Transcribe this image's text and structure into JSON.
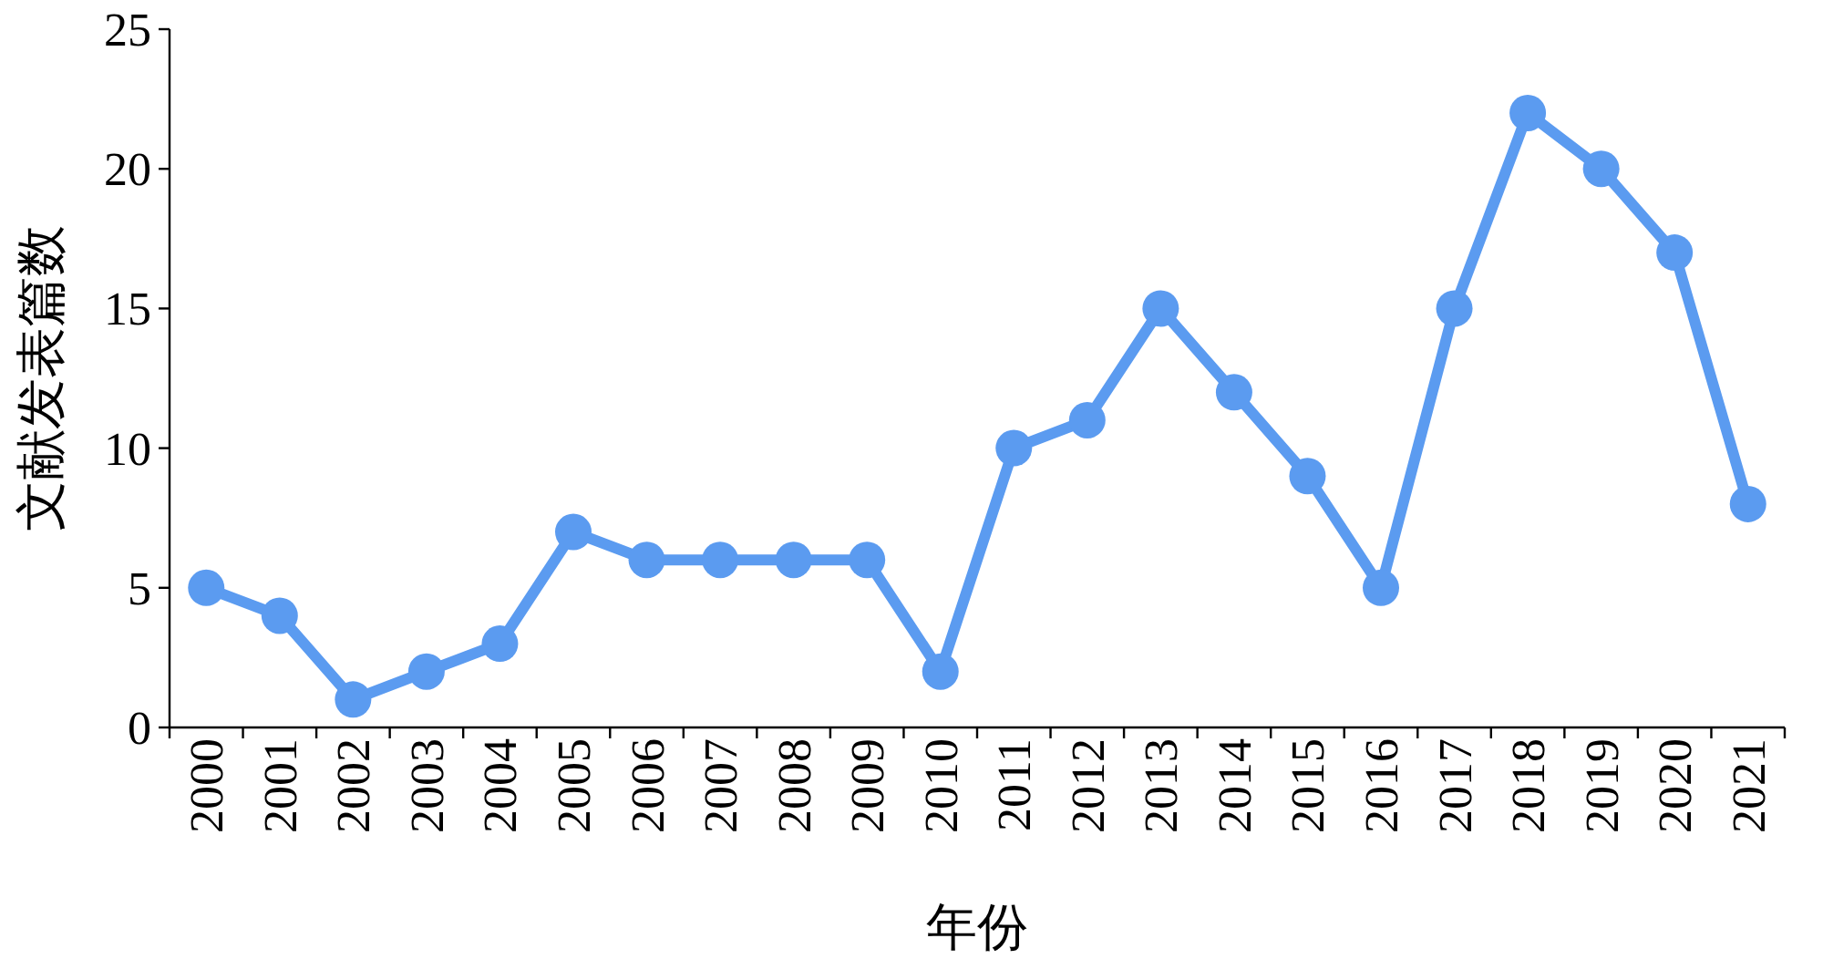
{
  "chart_data": {
    "type": "line",
    "xlabel": "年份",
    "ylabel": "文献发表篇数",
    "categories": [
      "2000",
      "2001",
      "2002",
      "2003",
      "2004",
      "2005",
      "2006",
      "2007",
      "2008",
      "2009",
      "2010",
      "2011",
      "2012",
      "2013",
      "2014",
      "2015",
      "2016",
      "2017",
      "2018",
      "2019",
      "2020",
      "2021"
    ],
    "values": [
      5,
      4,
      1,
      2,
      3,
      7,
      6,
      6,
      6,
      6,
      2,
      10,
      11,
      15,
      12,
      9,
      5,
      15,
      22,
      20,
      17,
      8
    ],
    "color": "#5b9bf0",
    "ylim": [
      0,
      25
    ],
    "yticks": [
      0,
      5,
      10,
      15,
      20,
      25
    ],
    "marker": "circle",
    "line_style": "solid"
  }
}
